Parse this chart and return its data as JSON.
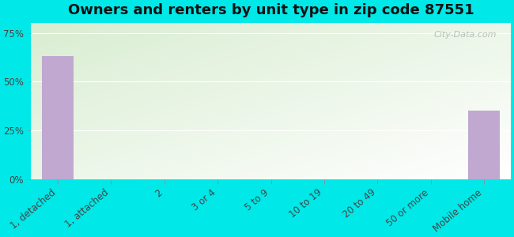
{
  "title": "Owners and renters by unit type in zip code 87551",
  "categories": [
    "1, detached",
    "1, attached",
    "2",
    "3 or 4",
    "5 to 9",
    "10 to 19",
    "20 to 49",
    "50 or more",
    "Mobile home"
  ],
  "values": [
    63.0,
    0,
    0,
    0,
    0,
    0,
    0,
    0,
    35.0
  ],
  "bar_color": "#c0a8d0",
  "background_color": "#00e8e8",
  "plot_bg_color_top_left": "#d8ecd0",
  "plot_bg_color_bottom_right": "#f8fff8",
  "ylabel_ticks": [
    0,
    25,
    50,
    75
  ],
  "ylim": [
    0,
    80
  ],
  "title_fontsize": 13,
  "tick_fontsize": 8.5,
  "watermark": "City-Data.com"
}
